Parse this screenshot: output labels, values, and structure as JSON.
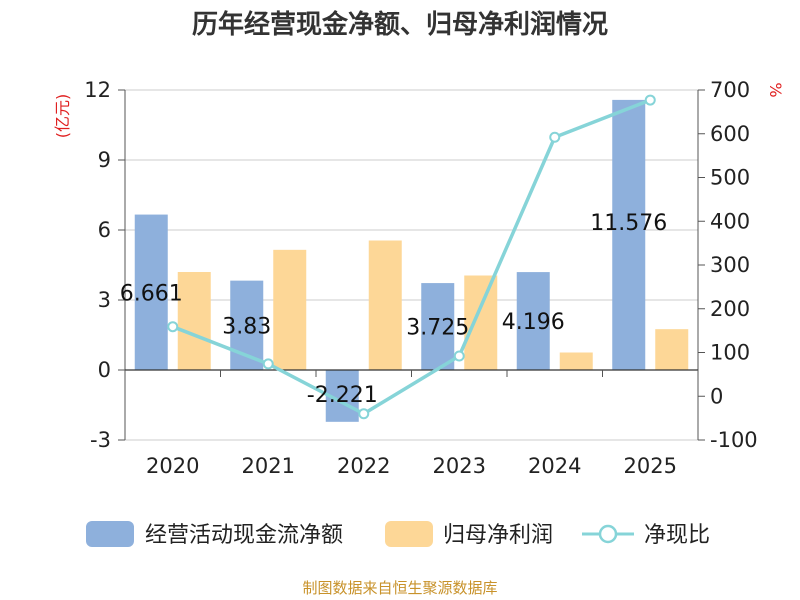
{
  "chart_data": {
    "type": "bar",
    "title": "历年经营现金净额、归母净利润情况",
    "categories": [
      "2020",
      "2021",
      "2022",
      "2023",
      "2024",
      "2025"
    ],
    "series": [
      {
        "name": "经营活动现金流净额",
        "type": "bar",
        "axis": "left",
        "color": "#8eb0dc",
        "values": [
          6.661,
          3.83,
          -2.221,
          3.725,
          4.196,
          11.576
        ],
        "data_labels": [
          "6.661",
          "3.83",
          "-2.221",
          "3.725",
          "4.196",
          "11.576"
        ]
      },
      {
        "name": "归母净利润",
        "type": "bar",
        "axis": "left",
        "color": "#fdd797",
        "values": [
          4.2,
          5.15,
          5.55,
          4.05,
          0.75,
          1.75
        ]
      },
      {
        "name": "净现比",
        "type": "line",
        "axis": "right",
        "color": "#86d4d8",
        "values": [
          159,
          74,
          -40,
          92,
          592,
          677
        ]
      }
    ],
    "y_left": {
      "label": "(亿元)",
      "ylim": [
        -3,
        12
      ],
      "ticks": [
        "-3",
        "0",
        "3",
        "6",
        "9",
        "12"
      ]
    },
    "y_right": {
      "label": "%",
      "ylim": [
        -100,
        700
      ],
      "ticks": [
        "-100",
        "0",
        "100",
        "200",
        "300",
        "400",
        "500",
        "600",
        "700"
      ]
    },
    "grid": true,
    "legend": "bottom",
    "source": "制图数据来自恒生聚源数据库"
  }
}
